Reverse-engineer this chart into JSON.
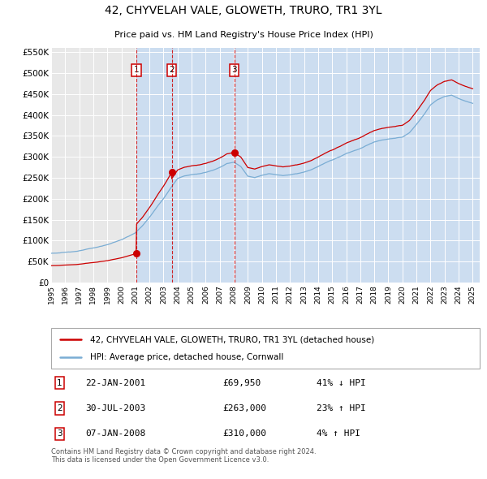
{
  "title": "42, CHYVELAH VALE, GLOWETH, TRURO, TR1 3YL",
  "subtitle": "Price paid vs. HM Land Registry's House Price Index (HPI)",
  "legend_line1": "42, CHYVELAH VALE, GLOWETH, TRURO, TR1 3YL (detached house)",
  "legend_line2": "HPI: Average price, detached house, Cornwall",
  "transactions": [
    {
      "num": 1,
      "date": "22-JAN-2001",
      "price": 69950,
      "pct": "41%",
      "dir": "↓",
      "year": 2001.06
    },
    {
      "num": 2,
      "date": "30-JUL-2003",
      "price": 263000,
      "pct": "23%",
      "dir": "↑",
      "year": 2003.58
    },
    {
      "num": 3,
      "date": "07-JAN-2008",
      "price": 310000,
      "pct": "4%",
      "dir": "↑",
      "year": 2008.03
    }
  ],
  "xmin": 1995.0,
  "xmax": 2025.5,
  "ymin": 0,
  "ymax": 560000,
  "yticks": [
    0,
    50000,
    100000,
    150000,
    200000,
    250000,
    300000,
    350000,
    400000,
    450000,
    500000,
    550000
  ],
  "ytick_labels": [
    "£0",
    "£50K",
    "£100K",
    "£150K",
    "£200K",
    "£250K",
    "£300K",
    "£350K",
    "£400K",
    "£450K",
    "£500K",
    "£550K"
  ],
  "unshaded_bg": "#e8e8e8",
  "shaded_bg": "#ccddf0",
  "grid_color": "#ffffff",
  "red_line_color": "#cc0000",
  "blue_line_color": "#7aadd4",
  "dashed_vline_color": "#cc0000",
  "box_color": "#cc0000",
  "footer": "Contains HM Land Registry data © Crown copyright and database right 2024.\nThis data is licensed under the Open Government Licence v3.0.",
  "xtick_years": [
    1995,
    1996,
    1997,
    1998,
    1999,
    2000,
    2001,
    2002,
    2003,
    2004,
    2005,
    2006,
    2007,
    2008,
    2009,
    2010,
    2011,
    2012,
    2013,
    2014,
    2015,
    2016,
    2017,
    2018,
    2019,
    2020,
    2021,
    2022,
    2023,
    2024,
    2025
  ],
  "hpi_anchors_years": [
    1995.0,
    1996.0,
    1997.0,
    1998.0,
    1999.0,
    2000.0,
    2001.0,
    2001.5,
    2002.0,
    2002.5,
    2003.0,
    2003.5,
    2004.0,
    2004.5,
    2005.0,
    2005.5,
    2006.0,
    2006.5,
    2007.0,
    2007.5,
    2008.0,
    2008.5,
    2009.0,
    2009.5,
    2010.0,
    2010.5,
    2011.0,
    2011.5,
    2012.0,
    2012.5,
    2013.0,
    2013.5,
    2014.0,
    2014.5,
    2015.0,
    2015.5,
    2016.0,
    2016.5,
    2017.0,
    2017.5,
    2018.0,
    2018.5,
    2019.0,
    2019.5,
    2020.0,
    2020.5,
    2021.0,
    2021.5,
    2022.0,
    2022.5,
    2023.0,
    2023.5,
    2024.0,
    2024.5,
    2025.0
  ],
  "hpi_anchors_vals": [
    70000,
    72000,
    76000,
    82000,
    90000,
    102000,
    118000,
    135000,
    155000,
    178000,
    200000,
    225000,
    248000,
    255000,
    258000,
    260000,
    263000,
    268000,
    276000,
    285000,
    288000,
    278000,
    255000,
    252000,
    258000,
    262000,
    260000,
    258000,
    260000,
    263000,
    267000,
    272000,
    280000,
    288000,
    295000,
    302000,
    310000,
    316000,
    322000,
    330000,
    338000,
    342000,
    344000,
    346000,
    348000,
    358000,
    378000,
    400000,
    425000,
    438000,
    445000,
    448000,
    440000,
    433000,
    428000
  ]
}
